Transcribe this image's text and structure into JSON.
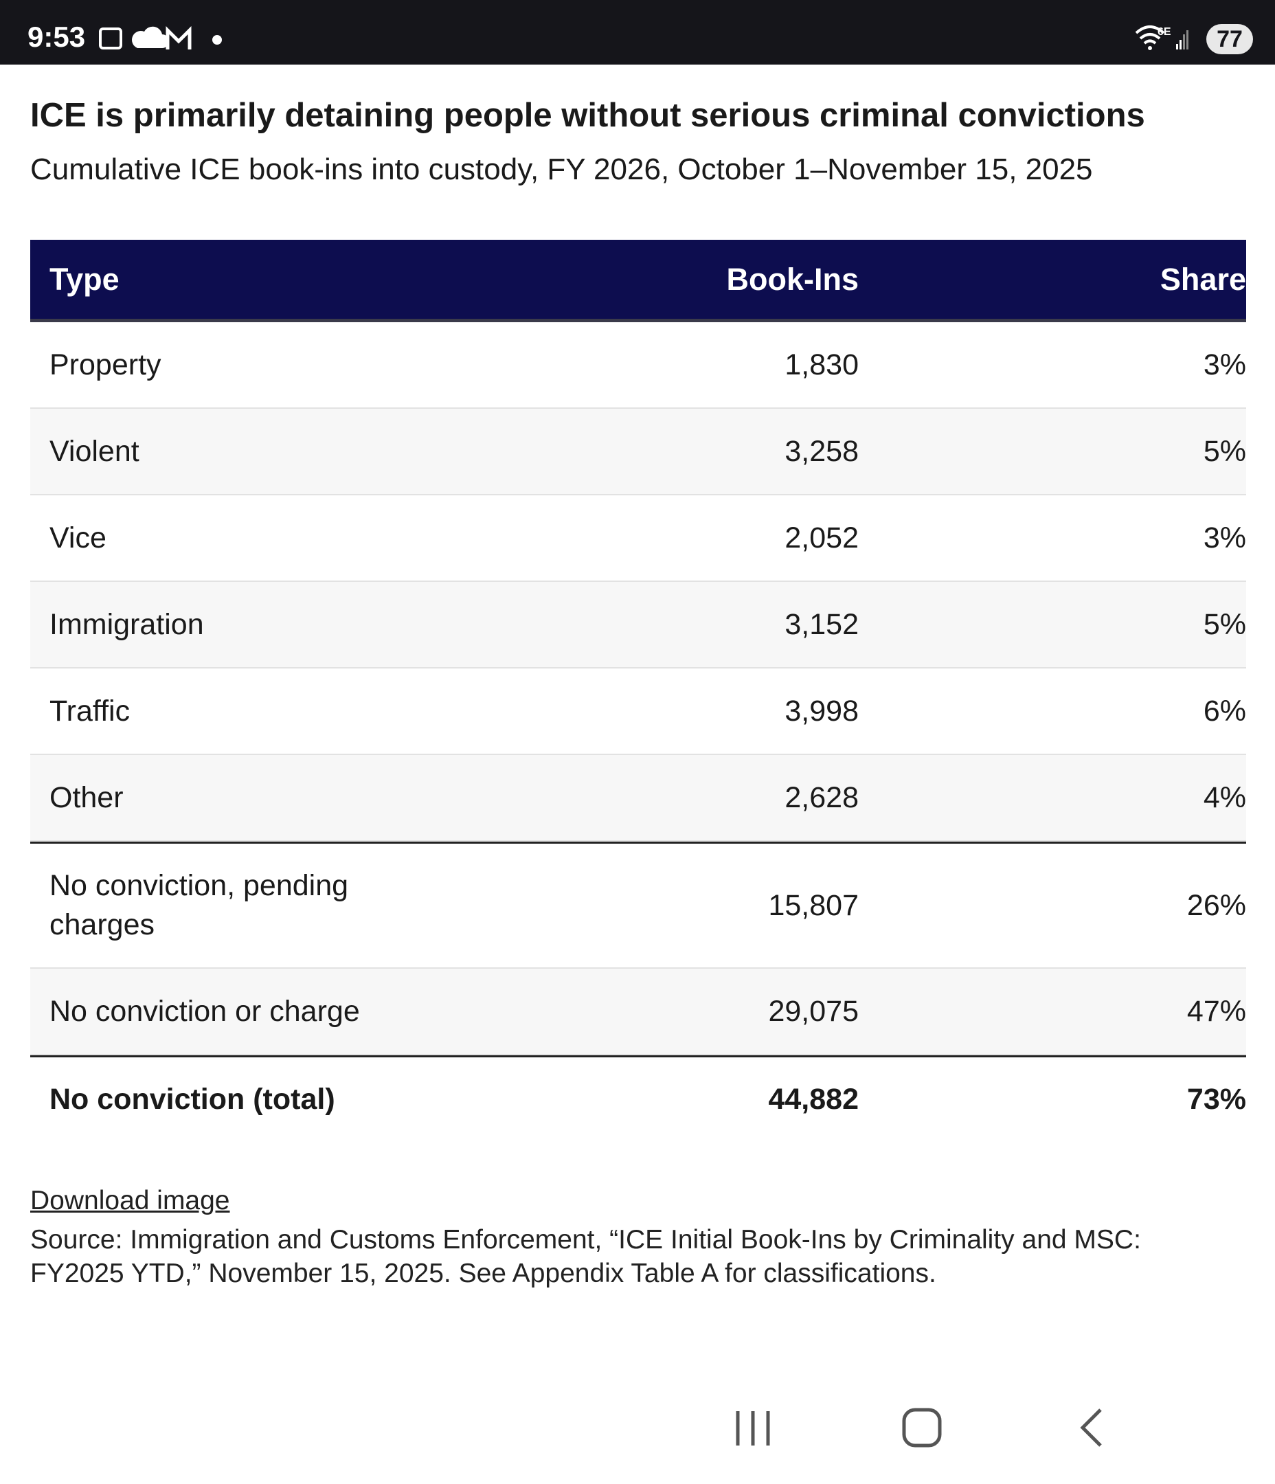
{
  "status_bar": {
    "time": "9:53",
    "network": "6E",
    "battery": "77"
  },
  "header": {
    "title": "ICE is primarily detaining people without serious criminal convictions",
    "subtitle": "Cumulative ICE book-ins into custody, FY 2026, October 1–November 15, 2025"
  },
  "table": {
    "columns": [
      "Type",
      "Book-Ins",
      "Share"
    ],
    "rows": [
      [
        "Property",
        "1,830",
        "3%"
      ],
      [
        "Violent",
        "3,258",
        "5%"
      ],
      [
        "Vice",
        "2,052",
        "3%"
      ],
      [
        "Immigration",
        "3,152",
        "5%"
      ],
      [
        "Traffic",
        "3,998",
        "6%"
      ],
      [
        "Other",
        "2,628",
        "4%"
      ],
      [
        "No conviction, pending charges",
        "15,807",
        "26%"
      ],
      [
        "No conviction or charge",
        "29,075",
        "47%"
      ],
      [
        "No conviction (total)",
        "44,882",
        "73%"
      ]
    ]
  },
  "footer": {
    "link": "Download image",
    "source": "Source: Immigration and Customs Enforcement, “ICE Initial Book-Ins by Criminality and MSC: FY2025 YTD,” November 15, 2025. See Appendix Table A for classifications."
  }
}
